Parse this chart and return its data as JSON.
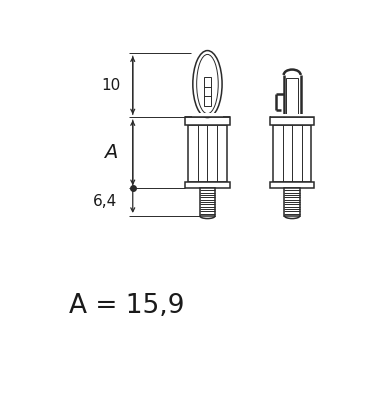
{
  "bg_color": "#ffffff",
  "line_color": "#2a2a2a",
  "text_color": "#1a1a1a",
  "dim_label_10": "10",
  "dim_label_A": "A",
  "dim_label_64": "6,4",
  "formula": "A = 15,9",
  "figsize": [
    3.89,
    4.0
  ],
  "dpi": 100
}
